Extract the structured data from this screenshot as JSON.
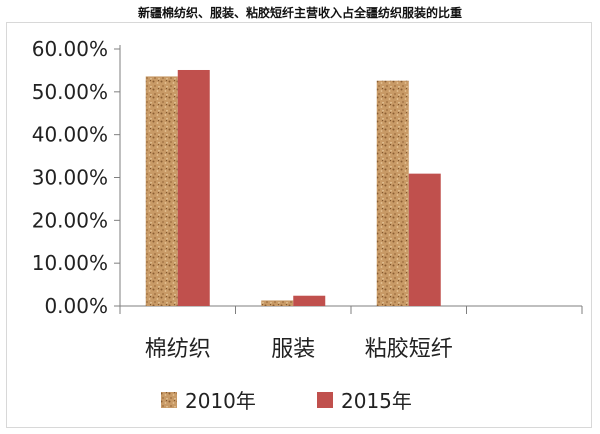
{
  "chart_data": {
    "type": "bar",
    "title": "新疆棉纺织、服装、粘胶短纤主营收入占全疆纺织服装的比重",
    "categories": [
      "棉纺织",
      "服装",
      "粘胶短纤",
      ""
    ],
    "series": [
      {
        "name": "2010年",
        "values": [
          0.536,
          0.013,
          0.526,
          null
        ],
        "color": "#b88a5a",
        "pattern": "speckled-texture"
      },
      {
        "name": "2015年",
        "values": [
          0.551,
          0.024,
          0.309,
          null
        ],
        "color": "#c0504d"
      }
    ],
    "ylim": [
      0,
      0.6
    ],
    "yticks": [
      0.0,
      0.1,
      0.2,
      0.3,
      0.4,
      0.5,
      0.6
    ],
    "ytick_labels": [
      "0.00%",
      "10.00%",
      "20.00%",
      "30.00%",
      "40.00%",
      "50.00%",
      "60.00%"
    ],
    "grid": false,
    "legend_position": "bottom"
  }
}
